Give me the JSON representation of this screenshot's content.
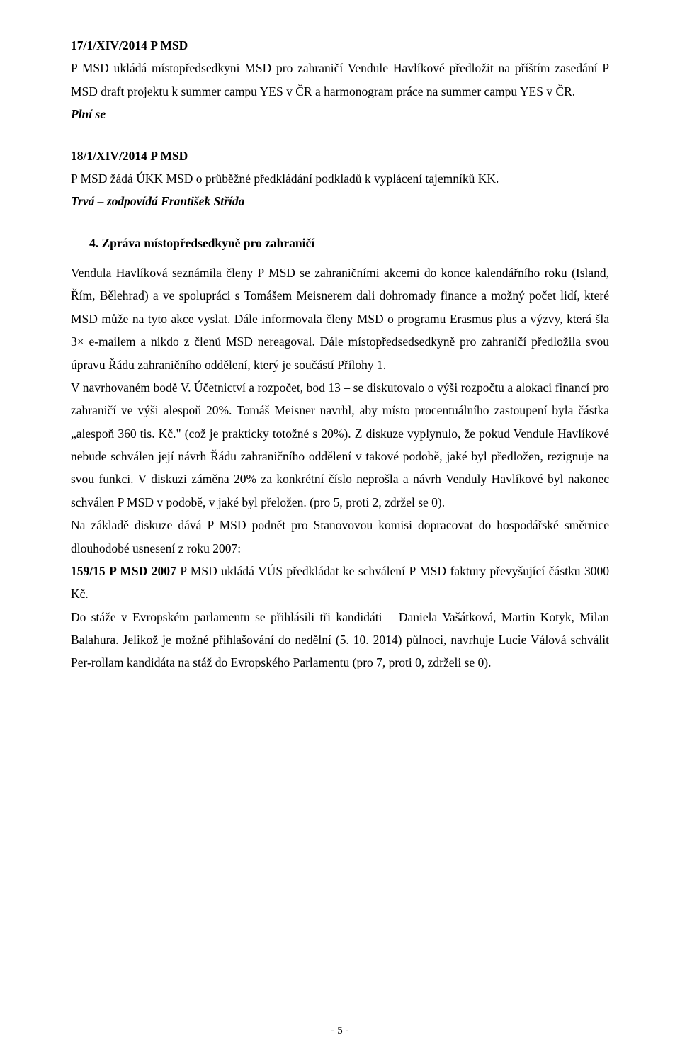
{
  "block1": {
    "code": "17/1/XIV/2014 P MSD",
    "text": "P MSD ukládá místopředsedkyni MSD pro zahraničí Vendule Havlíkové předložit na příštím zasedání P MSD draft projektu k summer campu YES v ČR a harmonogram práce na summer campu YES v ČR.",
    "status": "Plní se"
  },
  "block2": {
    "code": "18/1/XIV/2014 P MSD",
    "text": "P MSD žádá ÚKK MSD o průběžné předkládání podkladů k vyplácení tajemníků KK.",
    "status": "Trvá – zodpovídá František Střída"
  },
  "heading4": "4.  Zpráva místopředsedkyně pro zahraničí",
  "body": {
    "p1": "Vendula Havlíková seznámila členy P MSD se zahraničními akcemi do konce kalendářního roku (Island, Řím, Bělehrad) a ve spolupráci s Tomášem Meisnerem dali dohromady finance a možný počet lidí, které MSD může na tyto akce vyslat. Dále informovala členy MSD o programu Erasmus plus a výzvy, která šla 3× e-mailem a nikdo z členů MSD nereagoval. Dále místopředsedsedkyně pro zahraničí předložila svou úpravu Řádu zahraničního oddělení, který je součástí Přílohy 1.",
    "p2": "V navrhovaném bodě V. Účetnictví a rozpočet, bod 13 – se diskutovalo o výši rozpočtu a alokaci financí pro zahraničí ve výši alespoň 20%. Tomáš Meisner navrhl, aby místo procentuálního zastoupení byla částka „alespoň 360 tis. Kč.\" (což je prakticky totožné s 20%). Z diskuze vyplynulo, že pokud Vendule Havlíkové nebude schválen její návrh Řádu zahraničního oddělení v takové podobě, jaké byl předložen, rezignuje na svou funkci. V diskuzi záměna 20% za konkrétní číslo neprošla a návrh Venduly Havlíkové byl nakonec schválen P MSD v podobě, v jaké byl přeložen. (pro 5, proti 2, zdržel se 0).",
    "p3": "Na základě diskuze dává P MSD podnět pro Stanovovou komisi dopracovat do hospodářské směrnice dlouhodobé usnesení z roku 2007:",
    "p4_lead": "159/15 P MSD 2007",
    "p4_rest": " P MSD ukládá VÚS předkládat ke schválení P MSD faktury převyšující částku 3000 Kč.",
    "p5": "Do stáže v Evropském parlamentu se přihlásili tři kandidáti – Daniela Vašátková, Martin Kotyk, Milan Balahura. Jelikož je možné přihlašování do nedělní (5. 10. 2014) půlnoci, navrhuje Lucie Válová schválit Per-rollam kandidáta na stáž do Evropského Parlamentu (pro 7, proti 0, zdrželi se 0)."
  },
  "footer": "- 5 -"
}
